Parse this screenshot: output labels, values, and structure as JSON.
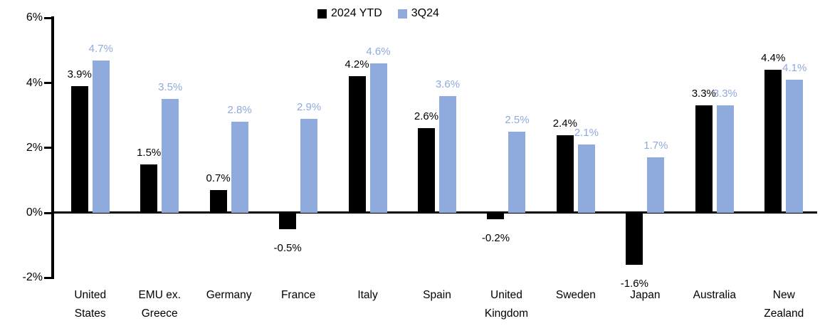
{
  "chart_data": {
    "type": "bar",
    "title": "",
    "categories": [
      "United States",
      "EMU ex. Greece",
      "Germany",
      "France",
      "Italy",
      "Spain",
      "United Kingdom",
      "Sweden",
      "Japan",
      "Australia",
      "New Zealand"
    ],
    "series": [
      {
        "name": "2024 YTD",
        "color": "#000000",
        "values": [
          3.9,
          1.5,
          0.7,
          -0.5,
          4.2,
          2.6,
          -0.2,
          2.4,
          -1.6,
          3.3,
          4.4
        ],
        "labels": [
          "3.9%",
          "1.5%",
          "0.7%",
          "-0.5%",
          "4.2%",
          "2.6%",
          "-0.2%",
          "2.4%",
          "-1.6%",
          "3.3%",
          "4.4%"
        ]
      },
      {
        "name": "3Q24",
        "color": "#8FAADC",
        "values": [
          4.7,
          3.5,
          2.8,
          2.9,
          4.6,
          3.6,
          2.5,
          2.1,
          1.7,
          3.3,
          4.1
        ],
        "labels": [
          "4.7%",
          "3.5%",
          "2.8%",
          "2.9%",
          "4.6%",
          "3.6%",
          "2.5%",
          "2.1%",
          "1.7%",
          "3.3%",
          "4.1%"
        ]
      }
    ],
    "ylim": [
      -2,
      6
    ],
    "ytick_values": [
      6,
      4,
      2,
      0,
      -2
    ],
    "ytick_labels": [
      "6%",
      "4%",
      "2%",
      "0%",
      "-2%"
    ],
    "grid": false,
    "legend_position": "top-center",
    "value_labels": true,
    "axis_color": "#000000",
    "background_color": "#ffffff"
  }
}
